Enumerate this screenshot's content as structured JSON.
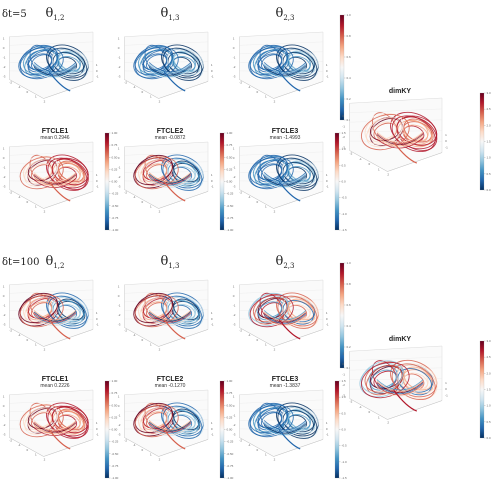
{
  "colors": {
    "cmap": [
      "#053061",
      "#2166ac",
      "#4393c3",
      "#92c5de",
      "#d1e5f0",
      "#f7f7f7",
      "#fddbc7",
      "#f4a582",
      "#d6604d",
      "#b2182b",
      "#67001f"
    ]
  },
  "chart_data": [
    {
      "type": "figure-grid",
      "row_label": "δt=5",
      "panels": [
        {
          "title_base": "θ",
          "title_sub": "1,2",
          "mean_label": "",
          "dominant": "blue",
          "has_colorbar": false,
          "cbar_ticks": []
        },
        {
          "title_base": "θ",
          "title_sub": "1,3",
          "mean_label": "",
          "dominant": "blue",
          "has_colorbar": false,
          "cbar_ticks": []
        },
        {
          "title_base": "θ",
          "title_sub": "2,3",
          "mean_label": "",
          "dominant": "blue",
          "has_colorbar": true,
          "cbar_ticks": [
            "1.0",
            "0.8",
            "0.6",
            "0.4",
            "0.2",
            "0.0"
          ]
        },
        {
          "title_base": "FTCLE1",
          "title_sub": "",
          "mean_label": "mean 0.2946",
          "dominant": "red",
          "has_colorbar": true,
          "cbar_ticks": [
            "1.00",
            "0.75",
            "0.50",
            "0.25",
            "0.00",
            "-0.25",
            "-0.50",
            "-0.75",
            "-1.00"
          ]
        },
        {
          "title_base": "FTCLE2",
          "title_sub": "",
          "mean_label": "mean -0.0872",
          "dominant": "mixed",
          "has_colorbar": true,
          "cbar_ticks": [
            "1.00",
            "0.75",
            "0.50",
            "0.25",
            "0.00",
            "-0.25",
            "-0.50",
            "-0.75",
            "-1.00"
          ]
        },
        {
          "title_base": "FTCLE3",
          "title_sub": "",
          "mean_label": "mean -1.4993",
          "dominant": "blue",
          "has_colorbar": true,
          "cbar_ticks": [
            "1.5",
            "1.0",
            "0.5",
            "0.0",
            "-0.5",
            "-1.0",
            "-1.5"
          ]
        },
        {
          "title_base": "dimKY",
          "title_sub": "",
          "mean_label": "",
          "dominant": "red",
          "has_colorbar": true,
          "cbar_ticks": [
            "3.0",
            "2.5",
            "2.0",
            "1.5",
            "1.0",
            "0.5",
            "0.0"
          ]
        }
      ]
    },
    {
      "type": "figure-grid",
      "row_label": "δt=100",
      "panels": [
        {
          "title_base": "θ",
          "title_sub": "1,2",
          "mean_label": "",
          "dominant": "mixed",
          "has_colorbar": false,
          "cbar_ticks": []
        },
        {
          "title_base": "θ",
          "title_sub": "1,3",
          "mean_label": "",
          "dominant": "mixed",
          "has_colorbar": false,
          "cbar_ticks": []
        },
        {
          "title_base": "θ",
          "title_sub": "2,3",
          "mean_label": "",
          "dominant": "mixedred",
          "has_colorbar": true,
          "cbar_ticks": [
            "1.0",
            "0.8",
            "0.6",
            "0.4",
            "0.2",
            "0.0"
          ]
        },
        {
          "title_base": "FTCLE1",
          "title_sub": "",
          "mean_label": "mean 0.2226",
          "dominant": "red",
          "has_colorbar": true,
          "cbar_ticks": [
            "1.00",
            "0.75",
            "0.50",
            "0.25",
            "0.00",
            "-0.25",
            "-0.50",
            "-0.75",
            "-1.00"
          ]
        },
        {
          "title_base": "FTCLE2",
          "title_sub": "",
          "mean_label": "mean -0.1270",
          "dominant": "mixed",
          "has_colorbar": true,
          "cbar_ticks": [
            "1.00",
            "0.75",
            "0.50",
            "0.25",
            "0.00",
            "-0.25",
            "-0.50",
            "-0.75",
            "-1.00"
          ]
        },
        {
          "title_base": "FTCLE3",
          "title_sub": "",
          "mean_label": "mean -1.3837",
          "dominant": "blue",
          "has_colorbar": true,
          "cbar_ticks": [
            "1.5",
            "1.0",
            "0.5",
            "0.0",
            "-0.5",
            "-1.0",
            "-1.5"
          ]
        },
        {
          "title_base": "dimKY",
          "title_sub": "",
          "mean_label": "",
          "dominant": "mixedred",
          "has_colorbar": true,
          "cbar_ticks": [
            "3.0",
            "2.5",
            "2.0",
            "1.5",
            "1.0",
            "0.5",
            "0.0"
          ]
        }
      ]
    }
  ]
}
